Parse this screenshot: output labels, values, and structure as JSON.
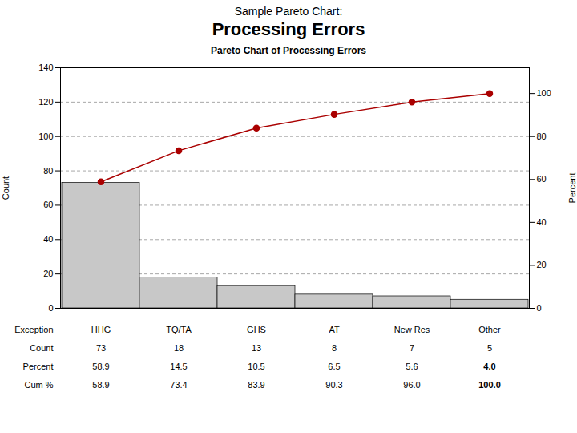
{
  "chart_data": {
    "type": "bar",
    "title": "Sample Pareto Chart:",
    "subtitle": "Processing Errors",
    "chart_title": "Pareto Chart of Processing Errors",
    "categories": [
      "HHG",
      "TQ/TA",
      "GHS",
      "AT",
      "New Res",
      "Other"
    ],
    "series": [
      {
        "type": "bar",
        "color": "#c8c8c8",
        "values": [
          73,
          18,
          13,
          8,
          7,
          5
        ]
      },
      {
        "type": "line",
        "axis": "y2",
        "color": "#aa0000",
        "marker": "circle",
        "line_style": "solid",
        "values": [
          58.9,
          73.4,
          83.9,
          90.3,
          96.0,
          100.0
        ]
      }
    ],
    "ylabel": "Count",
    "y2label": "Percent",
    "ylim": [
      0,
      140
    ],
    "yticks": [
      0,
      20,
      40,
      60,
      80,
      100,
      120,
      140
    ],
    "y2lim": [
      0,
      112.0
    ],
    "y2ticks": [
      0,
      20,
      40,
      60,
      80,
      100
    ],
    "grid": true,
    "table": {
      "rows": [
        {
          "label": "Exception",
          "values": [
            "HHG",
            "TQ/TA",
            "GHS",
            "AT",
            "New Res",
            "Other"
          ]
        },
        {
          "label": "Count",
          "values": [
            73,
            18,
            13,
            8,
            7,
            5
          ]
        },
        {
          "label": "Percent",
          "values": [
            58.9,
            14.5,
            10.5,
            6.5,
            5.6,
            4.0
          ],
          "value_labels": [
            "58.9",
            "14.5",
            "10.5",
            "6.5",
            "5.6",
            "4.0"
          ]
        },
        {
          "label": "Cum %",
          "values": [
            58.9,
            73.4,
            83.9,
            90.3,
            96.0,
            100.0
          ],
          "value_labels": [
            "58.9",
            "73.4",
            "83.9",
            "90.3",
            "96.0",
            "100.0"
          ]
        }
      ]
    }
  }
}
